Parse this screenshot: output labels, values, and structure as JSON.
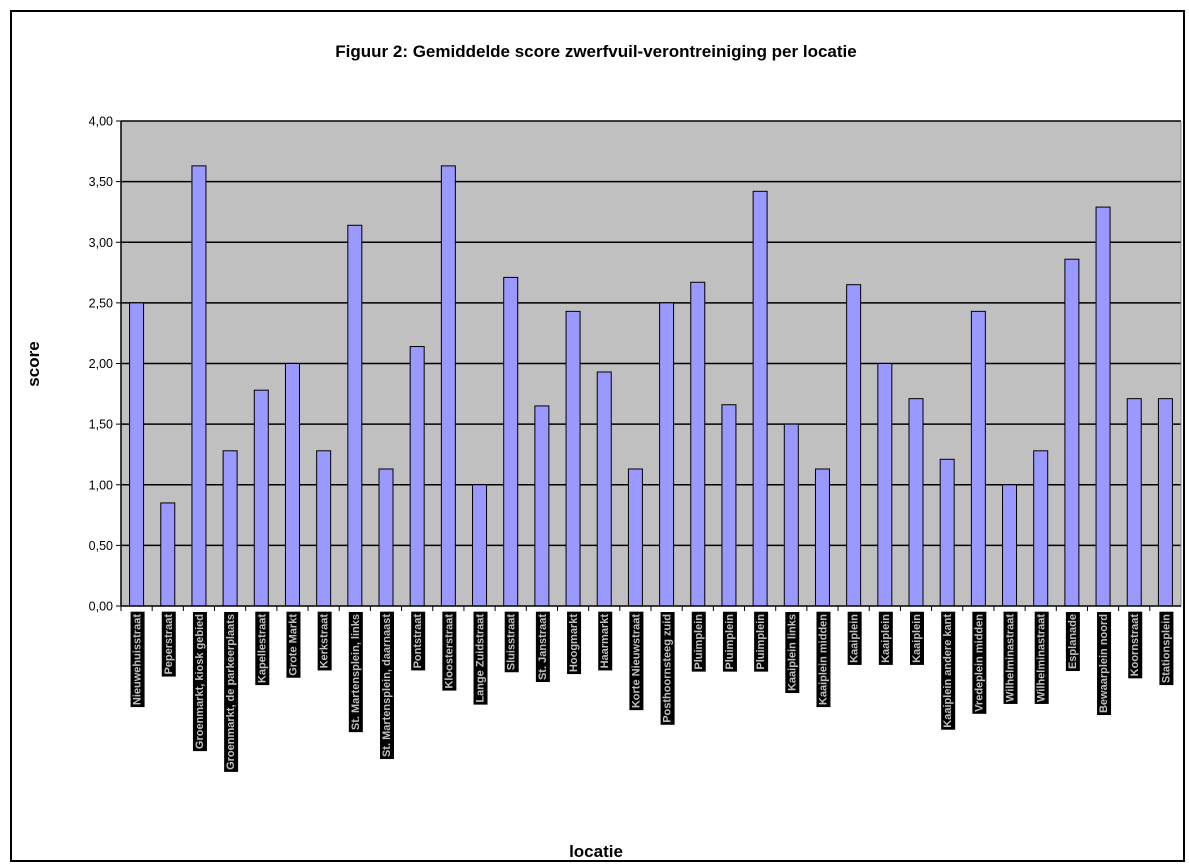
{
  "chart_data": {
    "type": "bar",
    "title": "Figuur 2: Gemiddelde score zwerfvuil-verontreiniging per locatie",
    "xlabel": "locatie",
    "ylabel": "score",
    "ylim": [
      0,
      4
    ],
    "yticks": [
      "0,00",
      "0,50",
      "1,00",
      "1,50",
      "2,00",
      "2,50",
      "3,00",
      "3,50",
      "4,00"
    ],
    "grid": true,
    "legend": "none",
    "colors": {
      "bar_fill": "#9999ff",
      "bar_stroke": "#000000",
      "plot_bg": "#c0c0c0",
      "label_bg": "#000000",
      "label_text": "#c0c0c0"
    },
    "categories": [
      "Nieuwehuisstraat",
      "Peperstraat",
      "Groenmarkt, kiosk gebied",
      "Groenmarkt, de parkeerplaats",
      "Kapellestraat",
      "Grote Markt",
      "Kerkstraat",
      "St. Martensplein, links",
      "St. Martensplein, daarnaast",
      "Pontstraat",
      "Kloosterstraat",
      "Lange Zuidstraat",
      "Sluisstraat",
      "St. Janstraat",
      "Hoogmarkt",
      "Haarmarkt",
      "Korte Nieuwstraat",
      "Posthoornsteeg zuid",
      "Pluimplein",
      "Pluimplein",
      "Pluimplein",
      "Kaaiplein links",
      "Kaaiplein midden",
      "Kaaiplein",
      "Kaaiplein",
      "Kaaiplein",
      "Kaaiplein andere kant",
      "Vredeplein midden",
      "Wilhelminastraat",
      "Wilhelminastraat",
      "Esplanade",
      "Bewaarplein noord",
      "Koornstraat",
      "Stationsplein"
    ],
    "values": [
      2.5,
      0.85,
      3.63,
      1.28,
      1.78,
      2.0,
      1.28,
      3.14,
      1.13,
      2.14,
      3.63,
      1.0,
      2.71,
      1.65,
      2.43,
      1.93,
      1.13,
      2.5,
      2.67,
      1.66,
      3.42,
      1.5,
      1.13,
      2.65,
      2.0,
      1.71,
      1.21,
      2.43,
      1.0,
      1.28,
      2.86,
      3.29,
      1.71,
      1.71
    ]
  }
}
